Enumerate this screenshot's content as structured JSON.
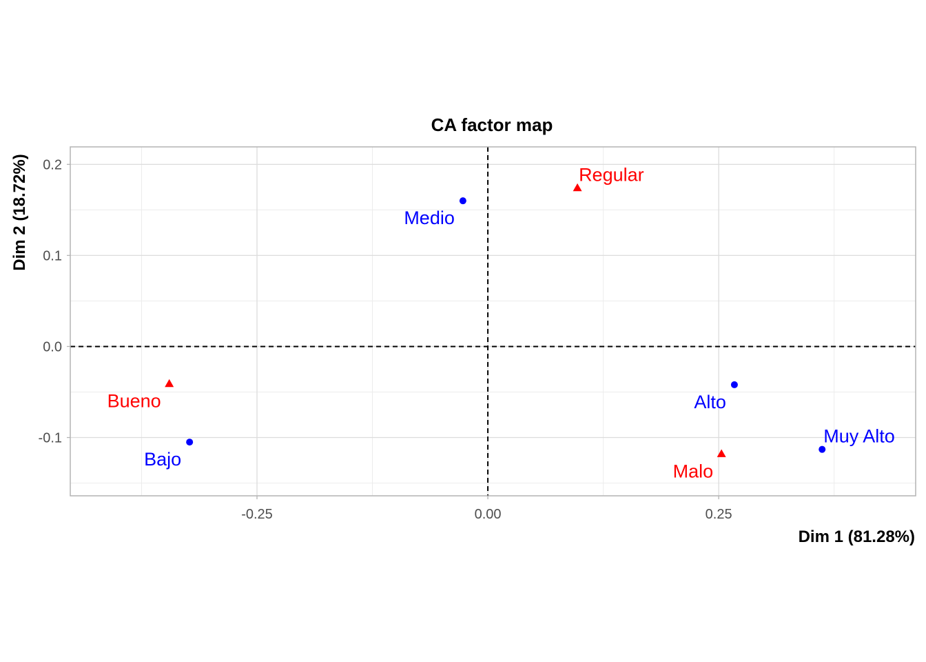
{
  "chart_data": {
    "type": "scatter",
    "title": "CA factor map",
    "xlabel": "Dim 1 (81.28%)",
    "ylabel": "Dim 2 (18.72%)",
    "xlim": [
      -0.4522,
      0.4633
    ],
    "ylim": [
      -0.164,
      0.2192
    ],
    "x_ticks": [
      -0.25,
      0.0,
      0.25
    ],
    "x_tick_labels": [
      "-0.25",
      "0.00",
      "0.25"
    ],
    "y_ticks": [
      -0.1,
      0.0,
      0.1,
      0.2
    ],
    "y_tick_labels": [
      "-0.1",
      "0.0",
      "0.1",
      "0.2"
    ],
    "x_minor_ticks": [
      -0.375,
      -0.125,
      0.125,
      0.375
    ],
    "y_minor_ticks": [
      -0.15,
      -0.05,
      0.05,
      0.15
    ],
    "grid": true,
    "reference_lines": {
      "x": 0,
      "y": 0,
      "style": "dashed"
    },
    "series": [
      {
        "marker": "circle",
        "color": "#0000ff",
        "points": [
          {
            "label": "Medio",
            "x": -0.027,
            "y": 0.16,
            "label_pos": "below-left"
          },
          {
            "label": "Bajo",
            "x": -0.323,
            "y": -0.105,
            "label_pos": "below-left"
          },
          {
            "label": "Alto",
            "x": 0.267,
            "y": -0.042,
            "label_pos": "below-left"
          },
          {
            "label": "Muy Alto",
            "x": 0.362,
            "y": -0.113,
            "label_pos": "above-right"
          }
        ]
      },
      {
        "marker": "triangle",
        "color": "#ff0000",
        "points": [
          {
            "label": "Regular",
            "x": 0.097,
            "y": 0.174,
            "label_pos": "above-right"
          },
          {
            "label": "Bueno",
            "x": -0.345,
            "y": -0.041,
            "label_pos": "below-left"
          },
          {
            "label": "Malo",
            "x": 0.253,
            "y": -0.118,
            "label_pos": "below-left"
          }
        ]
      }
    ]
  }
}
